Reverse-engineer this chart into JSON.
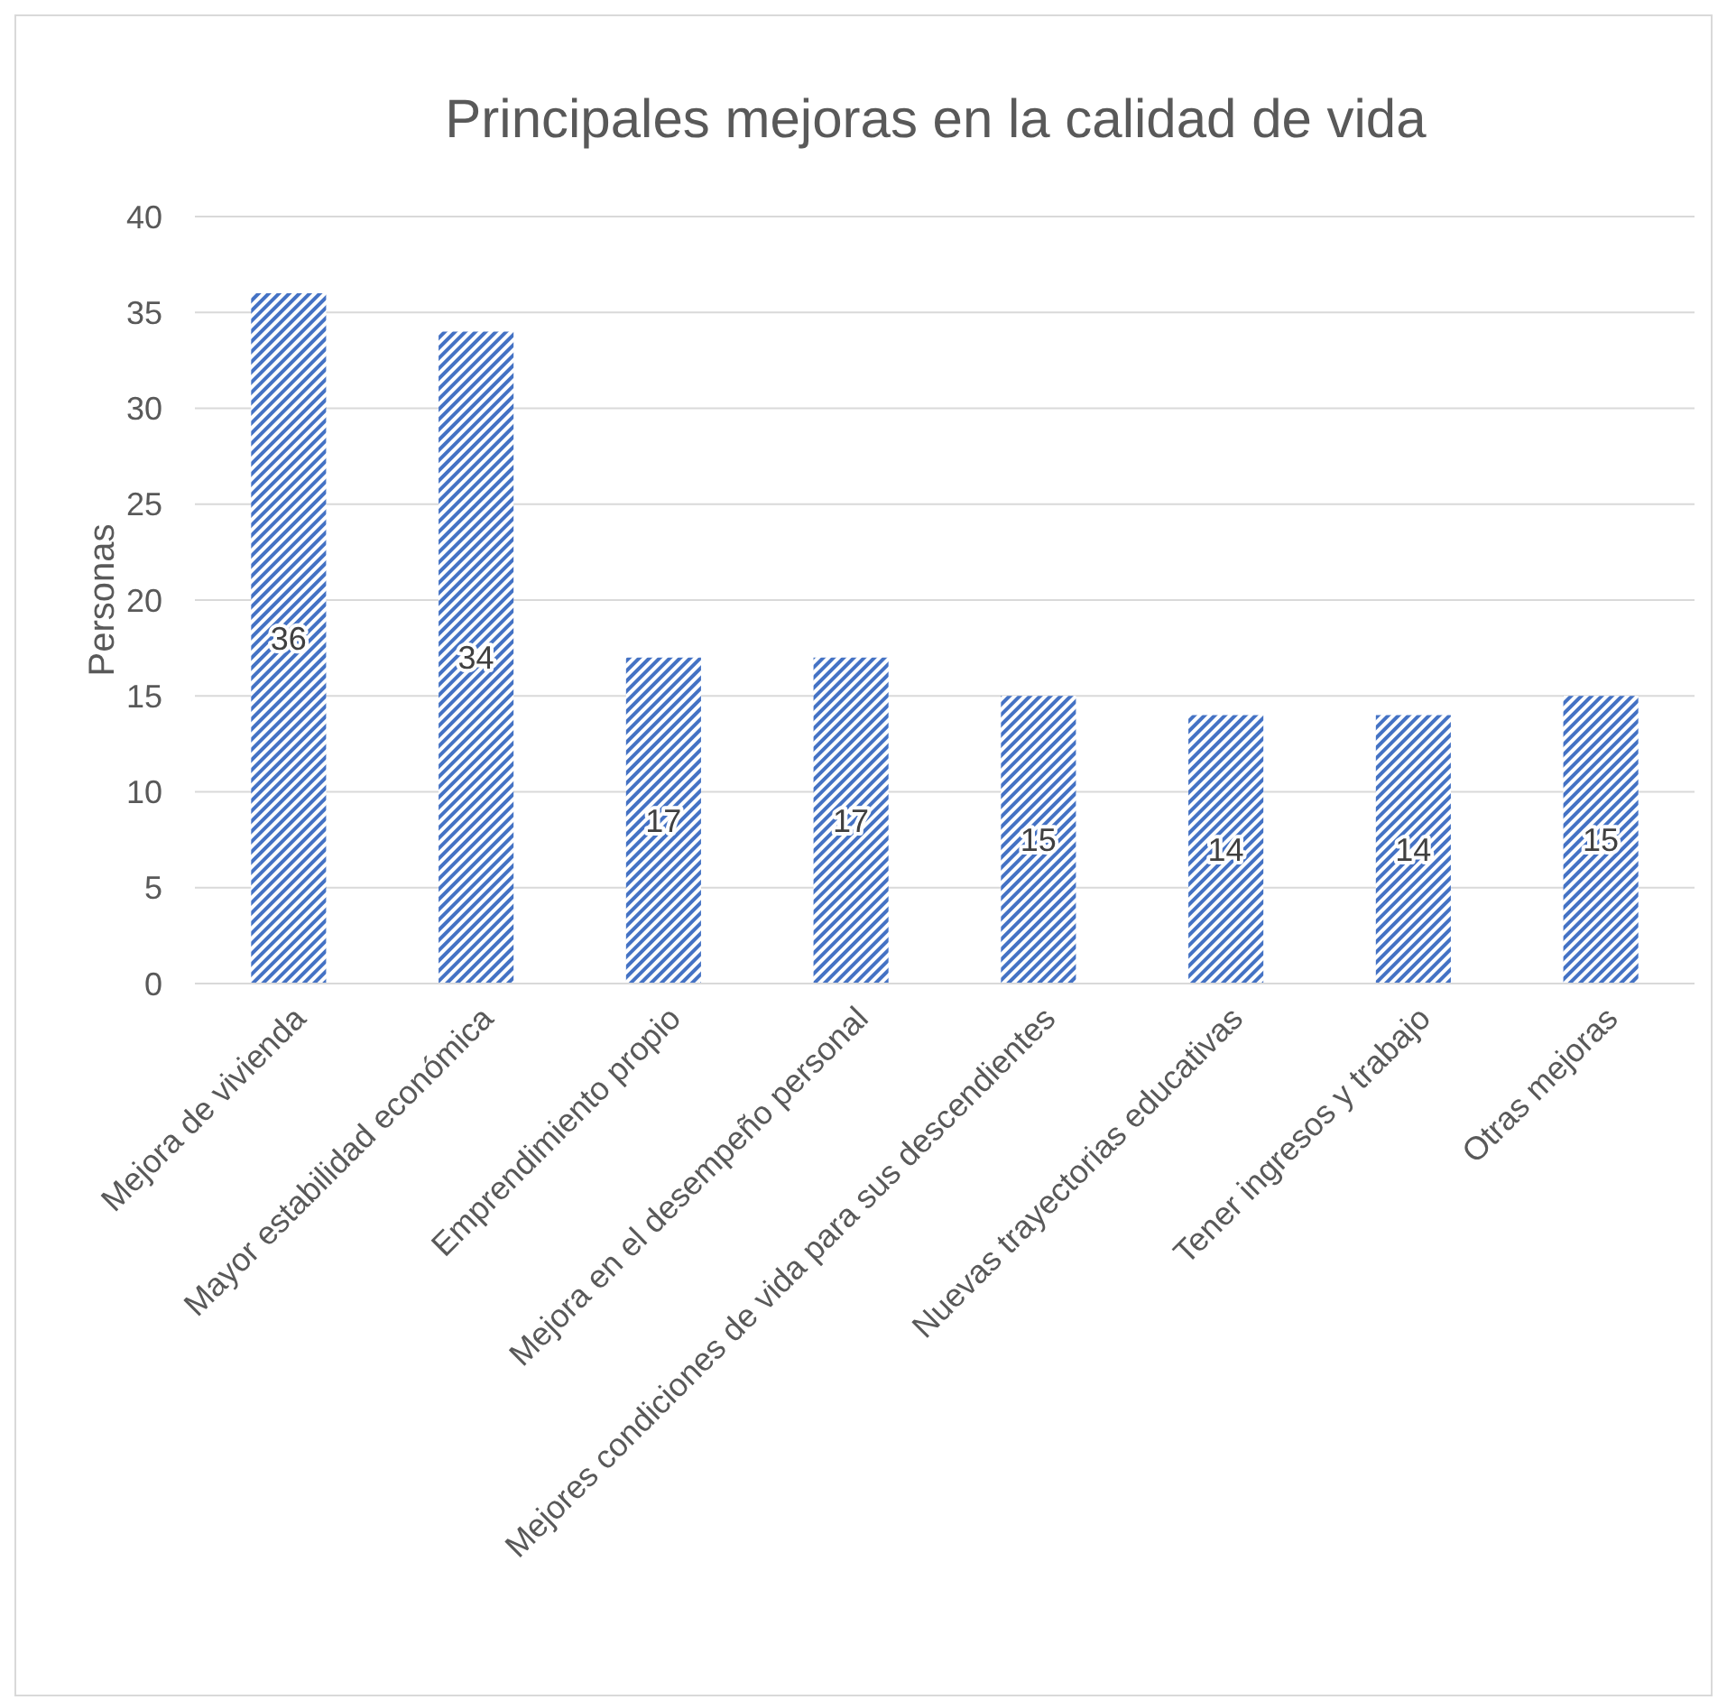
{
  "chart_data": {
    "type": "bar",
    "title": "Principales mejoras en la calidad de vida",
    "ylabel": "Personas",
    "categories": [
      "Mejora de vivienda",
      "Mayor estabilidad económica",
      "Emprendimiento propio",
      "Mejora en el desempeño personal",
      "Mejores condiciones de vida para sus descendientes",
      "Nuevas trayectorias educativas",
      "Tener ingresos y trabajo",
      "Otras mejoras"
    ],
    "values": [
      36,
      34,
      17,
      17,
      15,
      14,
      14,
      15
    ],
    "color": "#4472c4",
    "ylim": [
      0,
      40
    ],
    "yticks": [
      0,
      5,
      10,
      15,
      20,
      25,
      30,
      35,
      40
    ],
    "grid": "y",
    "data_labels": true
  }
}
